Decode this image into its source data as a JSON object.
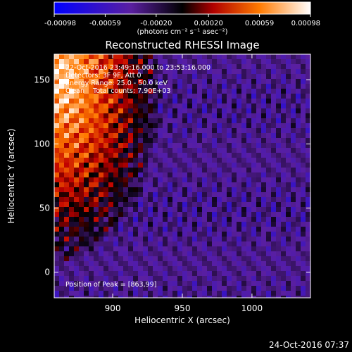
{
  "chart_data": {
    "type": "heatmap",
    "title": "Reconstructed RHESSI Image",
    "xlabel": "Heliocentric X (arcsec)",
    "ylabel": "Heliocentric Y (arcsec)",
    "xlim": [
      858,
      1042
    ],
    "ylim": [
      -20,
      170
    ],
    "x_ticks": [
      900,
      950,
      1000
    ],
    "y_ticks": [
      0,
      50,
      100,
      150
    ],
    "x_tick_labels": [
      "900",
      "950",
      "1000"
    ],
    "y_tick_labels": [
      "0",
      "50",
      "100",
      "150"
    ],
    "grid": false,
    "colorbar": {
      "position": "top",
      "range": [
        -0.00098,
        0.00098
      ],
      "tick_labels": [
        "-0.00098",
        "-0.00059",
        "-0.00020",
        "0.00020",
        "0.00059",
        "0.00098"
      ],
      "units_label": "(photons cm⁻² s⁻¹ asec⁻²)",
      "colors": [
        "#0000ff",
        "#5a1fa0",
        "#000000",
        "#c00000",
        "#ff7a00",
        "#ffffff"
      ]
    },
    "limb_curve": {
      "color": "#ffffff",
      "x_at_ytop": 950,
      "x_at_ybottom": 963
    },
    "annotations": [
      "22-Oct-2016 23:49:16.000 to 23:53:16.000",
      "Detectors: 3F 9F, Att 0",
      "Energy Range: 25.0 - 50.0 keV",
      "Clean    Total counts: 7.90E+03"
    ],
    "peak_label": "Position of Peak = [863,99]",
    "peak": {
      "x": 863,
      "y": 99
    }
  },
  "timestamp": "24-Oct-2016 07:37"
}
